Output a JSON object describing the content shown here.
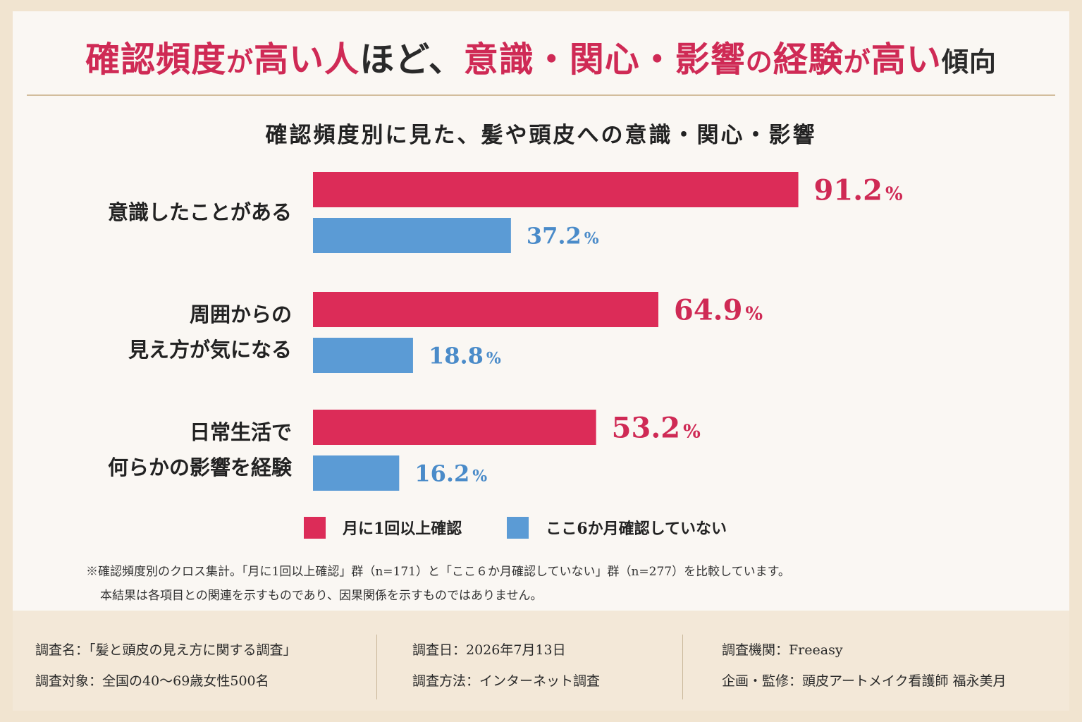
{
  "headline": {
    "segments": [
      {
        "text": "確認頻度",
        "style": "accent"
      },
      {
        "text": "が",
        "style": "accent-small"
      },
      {
        "text": "高い人",
        "style": "accent"
      },
      {
        "text": "ほど、",
        "style": "plain"
      },
      {
        "text": "意識・関心・影響",
        "style": "accent"
      },
      {
        "text": "の",
        "style": "accent-small"
      },
      {
        "text": "経験",
        "style": "accent"
      },
      {
        "text": "が",
        "style": "accent-small"
      },
      {
        "text": "高い",
        "style": "accent"
      },
      {
        "text": "傾向",
        "style": "plain-small"
      }
    ]
  },
  "chart_data": {
    "type": "bar",
    "orientation": "horizontal",
    "title": "確認頻度別に見た、髪や頭皮への意識・関心・影響",
    "categories": [
      [
        "意識したことがある"
      ],
      [
        "周囲からの",
        "見え方が気になる"
      ],
      [
        "日常生活で",
        "何らかの影響を経験"
      ]
    ],
    "series": [
      {
        "name": "月に1回以上確認",
        "color": "#dc2c58",
        "label_color": "#cf2a55",
        "values": [
          91.2,
          64.9,
          53.2
        ],
        "labels": [
          "91.2",
          "64.9",
          "53.2"
        ]
      },
      {
        "name": "ここ6か月確認していない",
        "color": "#5b9bd5",
        "label_color": "#4a8bc9",
        "values": [
          37.2,
          18.8,
          16.2
        ],
        "labels": [
          "37.2",
          "18.8",
          "16.2"
        ]
      }
    ],
    "unit": "%",
    "xlim": [
      0,
      100
    ],
    "grid": false,
    "legend": "bottom"
  },
  "notes": {
    "line1": "※確認頻度別のクロス集計。「月に1回以上確認」群（n=171）と「ここ６か月確認していない」群（n=277）を比較しています。",
    "line2": "本結果は各項目との関連を示すものであり、因果関係を示すものではありません。"
  },
  "footer": {
    "col1": [
      "調査名：「髪と頭皮の見え方に関する調査」",
      "調査対象：全国の40〜69歳女性500名"
    ],
    "col2": [
      "調査日：2026年7月13日",
      "調査方法：インターネット調査"
    ],
    "col3": [
      "調査機関：Freeasy",
      "企画・監修：頭皮アートメイク看護師 福永美月"
    ]
  }
}
